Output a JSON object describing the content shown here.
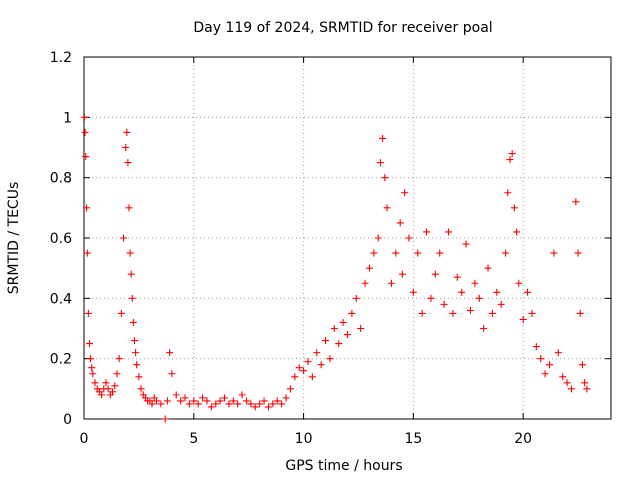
{
  "chart_data": {
    "type": "scatter",
    "title": "Day 119 of 2024, SRMTID for receiver poal",
    "xlabel": "GPS time / hours",
    "ylabel": "SRMTID / TECUs",
    "xlim": [
      0,
      24
    ],
    "ylim": [
      0,
      1.2
    ],
    "xticks": [
      0,
      5,
      10,
      15,
      20
    ],
    "xtick_labels": [
      "0",
      "5",
      "10",
      "15",
      "20"
    ],
    "yticks": [
      0,
      0.2,
      0.4,
      0.6,
      0.8,
      1,
      1.2
    ],
    "ytick_labels": [
      "0",
      "0.2",
      "0.4",
      "0.6",
      "0.8",
      "1",
      "1.2"
    ],
    "grid": true,
    "marker": "+",
    "series": [
      {
        "name": "SRMTID",
        "color": "#ff0000",
        "x": [
          0.02,
          0.05,
          0.08,
          0.12,
          0.15,
          0.2,
          0.25,
          0.3,
          0.35,
          0.4,
          0.5,
          0.6,
          0.7,
          0.8,
          0.9,
          1.0,
          1.1,
          1.2,
          1.3,
          1.4,
          1.5,
          1.6,
          1.7,
          1.8,
          1.9,
          1.95,
          2.0,
          2.05,
          2.1,
          2.15,
          2.2,
          2.25,
          2.3,
          2.35,
          2.4,
          2.5,
          2.6,
          2.7,
          2.8,
          2.9,
          3.0,
          3.1,
          3.2,
          3.3,
          3.5,
          3.7,
          3.8,
          3.9,
          4.0,
          4.2,
          4.4,
          4.6,
          4.8,
          5.0,
          5.2,
          5.4,
          5.6,
          5.8,
          6.0,
          6.2,
          6.4,
          6.6,
          6.8,
          7.0,
          7.2,
          7.4,
          7.6,
          7.8,
          8.0,
          8.2,
          8.4,
          8.6,
          8.8,
          9.0,
          9.2,
          9.4,
          9.6,
          9.8,
          10.0,
          10.2,
          10.4,
          10.6,
          10.8,
          11.0,
          11.2,
          11.4,
          11.6,
          11.8,
          12.0,
          12.2,
          12.4,
          12.6,
          12.8,
          13.0,
          13.2,
          13.4,
          13.5,
          13.6,
          13.7,
          13.8,
          14.0,
          14.2,
          14.4,
          14.5,
          14.6,
          14.8,
          15.0,
          15.2,
          15.4,
          15.6,
          15.8,
          16.0,
          16.2,
          16.4,
          16.6,
          16.8,
          17.0,
          17.2,
          17.4,
          17.6,
          17.8,
          18.0,
          18.2,
          18.4,
          18.6,
          18.8,
          19.0,
          19.2,
          19.3,
          19.4,
          19.5,
          19.6,
          19.7,
          19.8,
          20.0,
          20.2,
          20.4,
          20.6,
          20.8,
          21.0,
          21.2,
          21.4,
          21.6,
          21.8,
          22.0,
          22.2,
          22.4,
          22.5,
          22.6,
          22.7,
          22.8,
          22.9
        ],
        "y": [
          1.0,
          0.95,
          0.87,
          0.7,
          0.55,
          0.35,
          0.25,
          0.2,
          0.17,
          0.15,
          0.12,
          0.1,
          0.09,
          0.08,
          0.1,
          0.12,
          0.1,
          0.08,
          0.09,
          0.11,
          0.15,
          0.2,
          0.35,
          0.6,
          0.9,
          0.95,
          0.85,
          0.7,
          0.55,
          0.48,
          0.4,
          0.32,
          0.26,
          0.22,
          0.18,
          0.14,
          0.1,
          0.08,
          0.07,
          0.06,
          0.06,
          0.05,
          0.07,
          0.06,
          0.05,
          0.0,
          0.06,
          0.22,
          0.15,
          0.08,
          0.06,
          0.07,
          0.05,
          0.06,
          0.05,
          0.07,
          0.06,
          0.04,
          0.05,
          0.06,
          0.07,
          0.05,
          0.06,
          0.05,
          0.08,
          0.06,
          0.05,
          0.04,
          0.05,
          0.06,
          0.04,
          0.05,
          0.06,
          0.05,
          0.07,
          0.1,
          0.14,
          0.17,
          0.16,
          0.19,
          0.14,
          0.22,
          0.18,
          0.26,
          0.2,
          0.3,
          0.25,
          0.32,
          0.28,
          0.35,
          0.4,
          0.3,
          0.45,
          0.5,
          0.55,
          0.6,
          0.85,
          0.93,
          0.8,
          0.7,
          0.45,
          0.55,
          0.65,
          0.48,
          0.75,
          0.6,
          0.42,
          0.55,
          0.35,
          0.62,
          0.4,
          0.48,
          0.55,
          0.38,
          0.62,
          0.35,
          0.47,
          0.42,
          0.58,
          0.36,
          0.45,
          0.4,
          0.3,
          0.5,
          0.35,
          0.42,
          0.38,
          0.55,
          0.75,
          0.86,
          0.88,
          0.7,
          0.62,
          0.45,
          0.33,
          0.42,
          0.35,
          0.24,
          0.2,
          0.15,
          0.18,
          0.55,
          0.22,
          0.14,
          0.12,
          0.1,
          0.72,
          0.55,
          0.35,
          0.18,
          0.12,
          0.1
        ]
      }
    ]
  }
}
